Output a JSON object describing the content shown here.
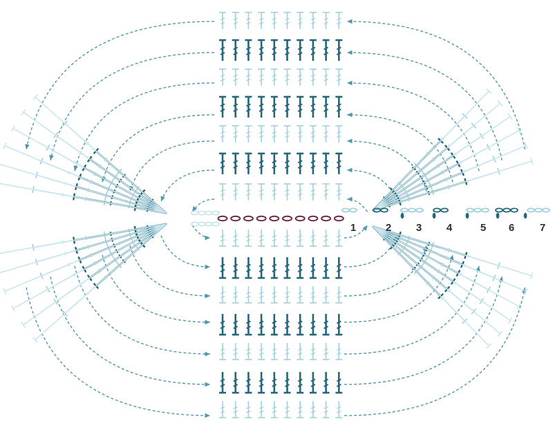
{
  "diagram": {
    "type": "crochet-oval-chart",
    "round_labels": [
      "1",
      "2",
      "3",
      "4",
      "5",
      "6",
      "7"
    ],
    "stitch_symbols": [
      "chain",
      "slip-stitch",
      "double-crochet",
      "treble-crochet",
      "increase-fan"
    ],
    "arrow_style": "dashed-curved"
  },
  "colors": {
    "dark": "#24667a",
    "medium": "#5fa5b8",
    "light": "#9fd0dc",
    "pale": "#c9e6ee",
    "chain": "#6b2a4a",
    "label": "#2a2f36"
  }
}
